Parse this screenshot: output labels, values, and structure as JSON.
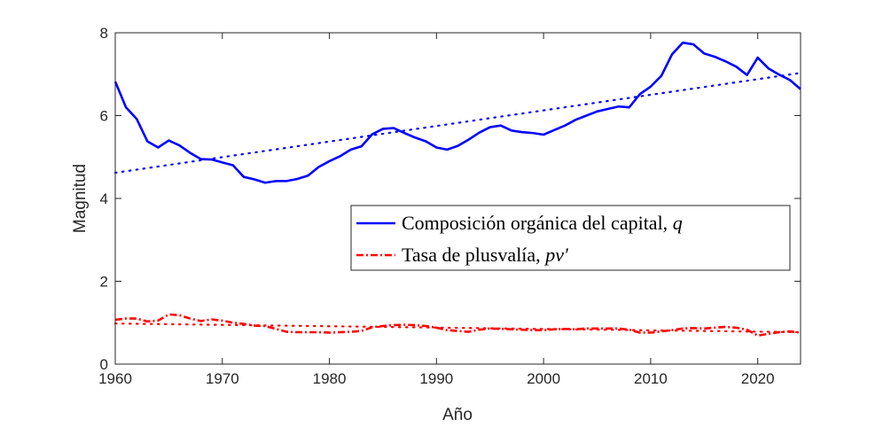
{
  "chart_data": {
    "type": "line",
    "xlabel": "Año",
    "ylabel": "Magnitud",
    "xlim": [
      1960,
      2024
    ],
    "ylim": [
      0,
      8
    ],
    "xticks": [
      1960,
      1970,
      1980,
      1990,
      2000,
      2010,
      2020
    ],
    "yticks": [
      0,
      2,
      4,
      6,
      8
    ],
    "grid": false,
    "legend_position": "center-right",
    "x": [
      1960,
      1961,
      1962,
      1963,
      1964,
      1965,
      1966,
      1967,
      1968,
      1969,
      1970,
      1971,
      1972,
      1973,
      1974,
      1975,
      1976,
      1977,
      1978,
      1979,
      1980,
      1981,
      1982,
      1983,
      1984,
      1985,
      1986,
      1987,
      1988,
      1989,
      1990,
      1991,
      1992,
      1993,
      1994,
      1995,
      1996,
      1997,
      1998,
      1999,
      2000,
      2001,
      2002,
      2003,
      2004,
      2005,
      2006,
      2007,
      2008,
      2009,
      2010,
      2011,
      2012,
      2013,
      2014,
      2015,
      2016,
      2017,
      2018,
      2019,
      2020,
      2021,
      2022,
      2023,
      2024
    ],
    "series": [
      {
        "name": "Composición orgánica del capital, q",
        "name_base": "Composición orgánica del capital, ",
        "name_var": "q",
        "color": "#0000ff",
        "style": "solid",
        "values": [
          6.82,
          6.2,
          5.92,
          5.38,
          5.23,
          5.4,
          5.28,
          5.1,
          4.95,
          4.94,
          4.87,
          4.8,
          4.52,
          4.46,
          4.38,
          4.42,
          4.42,
          4.47,
          4.55,
          4.76,
          4.9,
          5.02,
          5.18,
          5.26,
          5.55,
          5.68,
          5.7,
          5.58,
          5.47,
          5.38,
          5.23,
          5.18,
          5.27,
          5.42,
          5.59,
          5.72,
          5.76,
          5.64,
          5.6,
          5.58,
          5.54,
          5.65,
          5.76,
          5.9,
          6.0,
          6.1,
          6.16,
          6.22,
          6.2,
          6.52,
          6.7,
          6.96,
          7.48,
          7.76,
          7.72,
          7.5,
          7.42,
          7.31,
          7.18,
          6.98,
          7.4,
          7.14,
          6.99,
          6.86,
          6.64
        ]
      },
      {
        "name": "Tasa de plusvalía, pv′",
        "name_base": "Tasa de plusvalía, ",
        "name_var": "pv′",
        "color": "#ff0000",
        "style": "dashdot",
        "values": [
          1.07,
          1.1,
          1.1,
          1.03,
          1.05,
          1.2,
          1.18,
          1.1,
          1.04,
          1.08,
          1.05,
          1.0,
          0.97,
          0.93,
          0.92,
          0.85,
          0.78,
          0.77,
          0.77,
          0.77,
          0.76,
          0.77,
          0.78,
          0.8,
          0.89,
          0.92,
          0.94,
          0.95,
          0.94,
          0.92,
          0.88,
          0.82,
          0.8,
          0.78,
          0.83,
          0.86,
          0.85,
          0.84,
          0.83,
          0.82,
          0.82,
          0.84,
          0.85,
          0.84,
          0.86,
          0.86,
          0.86,
          0.86,
          0.83,
          0.76,
          0.76,
          0.79,
          0.82,
          0.86,
          0.87,
          0.86,
          0.88,
          0.9,
          0.88,
          0.83,
          0.69,
          0.73,
          0.77,
          0.79,
          0.76
        ]
      }
    ],
    "trendlines": [
      {
        "series": "Composición orgánica del capital, q",
        "color": "#0000ff",
        "style": "dotted",
        "x": [
          1960,
          2024
        ],
        "y": [
          4.62,
          7.03
        ]
      },
      {
        "series": "Tasa de plusvalía, pv′",
        "color": "#ff0000",
        "style": "dotted",
        "x": [
          1960,
          2024
        ],
        "y": [
          0.98,
          0.77
        ]
      }
    ]
  }
}
